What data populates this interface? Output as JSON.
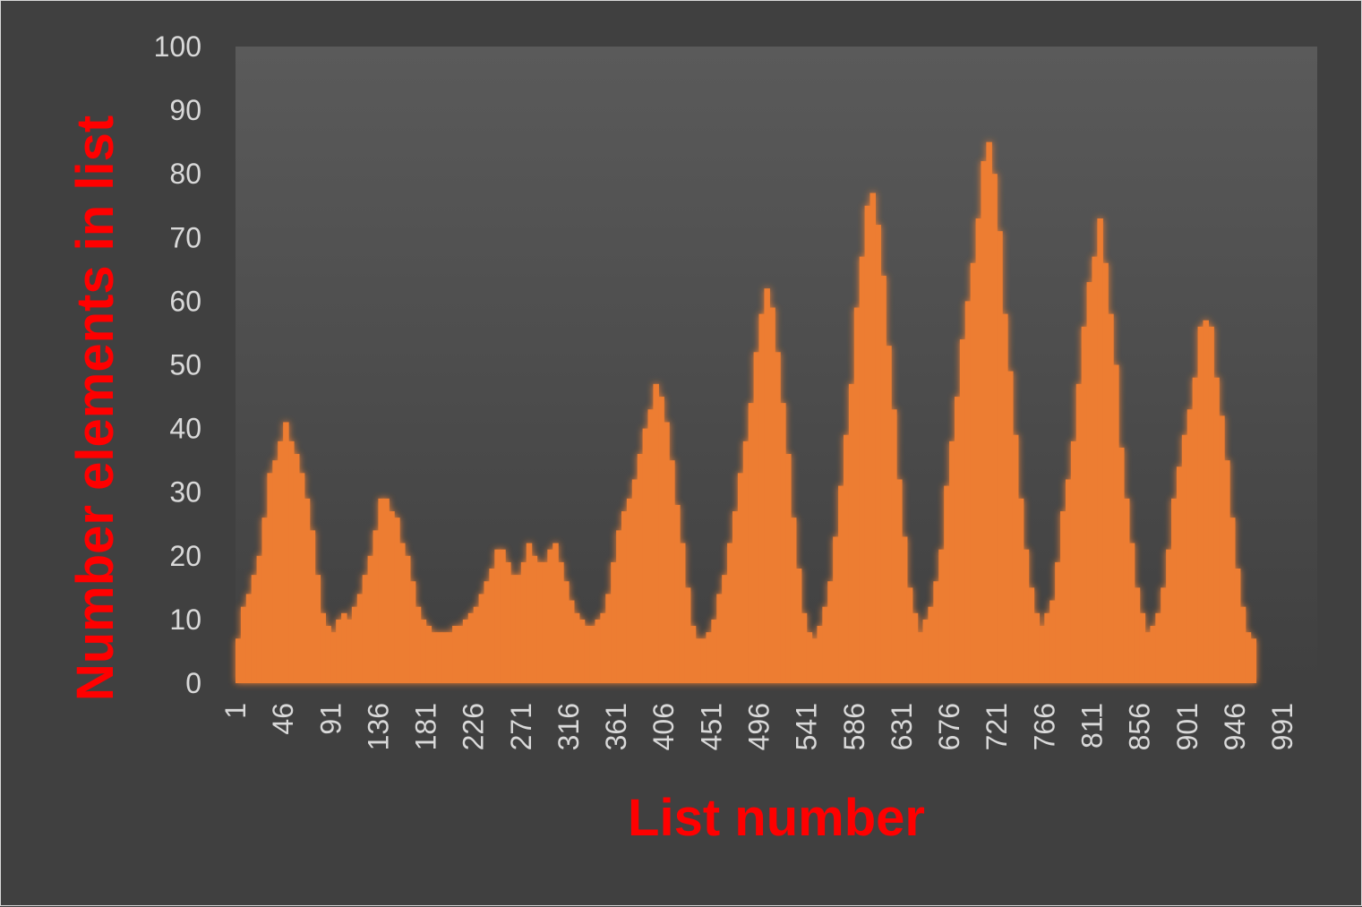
{
  "colors": {
    "background": "#404040",
    "plot_top": "#5a5a5a",
    "plot_bottom": "#404040",
    "bar": "#ed7d31",
    "glow": "#ed7d31",
    "tick_text": "#d9d9d9",
    "axis_title": "#ff0000"
  },
  "chart_data": {
    "type": "bar",
    "title": "",
    "xlabel": "List number",
    "ylabel": "Number elements in list",
    "ylim": [
      0,
      100
    ],
    "yticks": [
      0,
      10,
      20,
      30,
      40,
      50,
      60,
      70,
      80,
      90,
      100
    ],
    "xlim": [
      1,
      1024
    ],
    "xticks": [
      1,
      46,
      91,
      136,
      181,
      226,
      271,
      316,
      361,
      406,
      451,
      496,
      541,
      586,
      631,
      676,
      721,
      766,
      811,
      856,
      901,
      946,
      991
    ],
    "grid": false,
    "legend": "none",
    "series": [
      {
        "x_start": 1,
        "x_step": 5,
        "values": [
          7,
          12,
          14,
          17,
          20,
          26,
          33,
          35,
          38,
          41,
          38,
          36,
          33,
          29,
          24,
          17,
          11,
          9,
          8,
          10,
          11,
          10,
          12,
          14,
          17,
          20,
          24,
          29,
          29,
          27,
          26,
          22,
          20,
          16,
          12,
          10,
          9,
          8,
          8,
          8,
          8,
          9,
          9,
          10,
          11,
          12,
          14,
          16,
          18,
          21,
          21,
          19,
          17,
          17,
          19,
          22,
          20,
          19,
          19,
          21,
          22,
          19,
          16,
          13,
          11,
          10,
          9,
          9,
          10,
          11,
          14,
          19,
          24,
          27,
          29,
          32,
          36,
          40,
          43,
          47,
          45,
          41,
          35,
          28,
          22,
          15,
          9,
          7,
          7,
          8,
          10,
          14,
          17,
          22,
          27,
          33,
          38,
          44,
          52,
          58,
          62,
          59,
          52,
          44,
          36,
          26,
          18,
          11,
          8,
          7,
          9,
          12,
          16,
          23,
          31,
          39,
          47,
          59,
          67,
          75,
          77,
          72,
          64,
          53,
          43,
          32,
          23,
          15,
          11,
          8,
          10,
          12,
          16,
          21,
          31,
          38,
          45,
          54,
          60,
          66,
          73,
          82,
          85,
          80,
          71,
          58,
          49,
          39,
          29,
          21,
          15,
          11,
          9,
          11,
          13,
          19,
          27,
          32,
          38,
          47,
          56,
          63,
          67,
          73,
          66,
          58,
          50,
          37,
          29,
          22,
          15,
          11,
          8,
          9,
          11,
          15,
          21,
          29,
          34,
          39,
          43,
          48,
          56,
          57,
          56,
          48,
          42,
          35,
          26,
          18,
          12,
          8,
          7
        ]
      }
    ]
  }
}
